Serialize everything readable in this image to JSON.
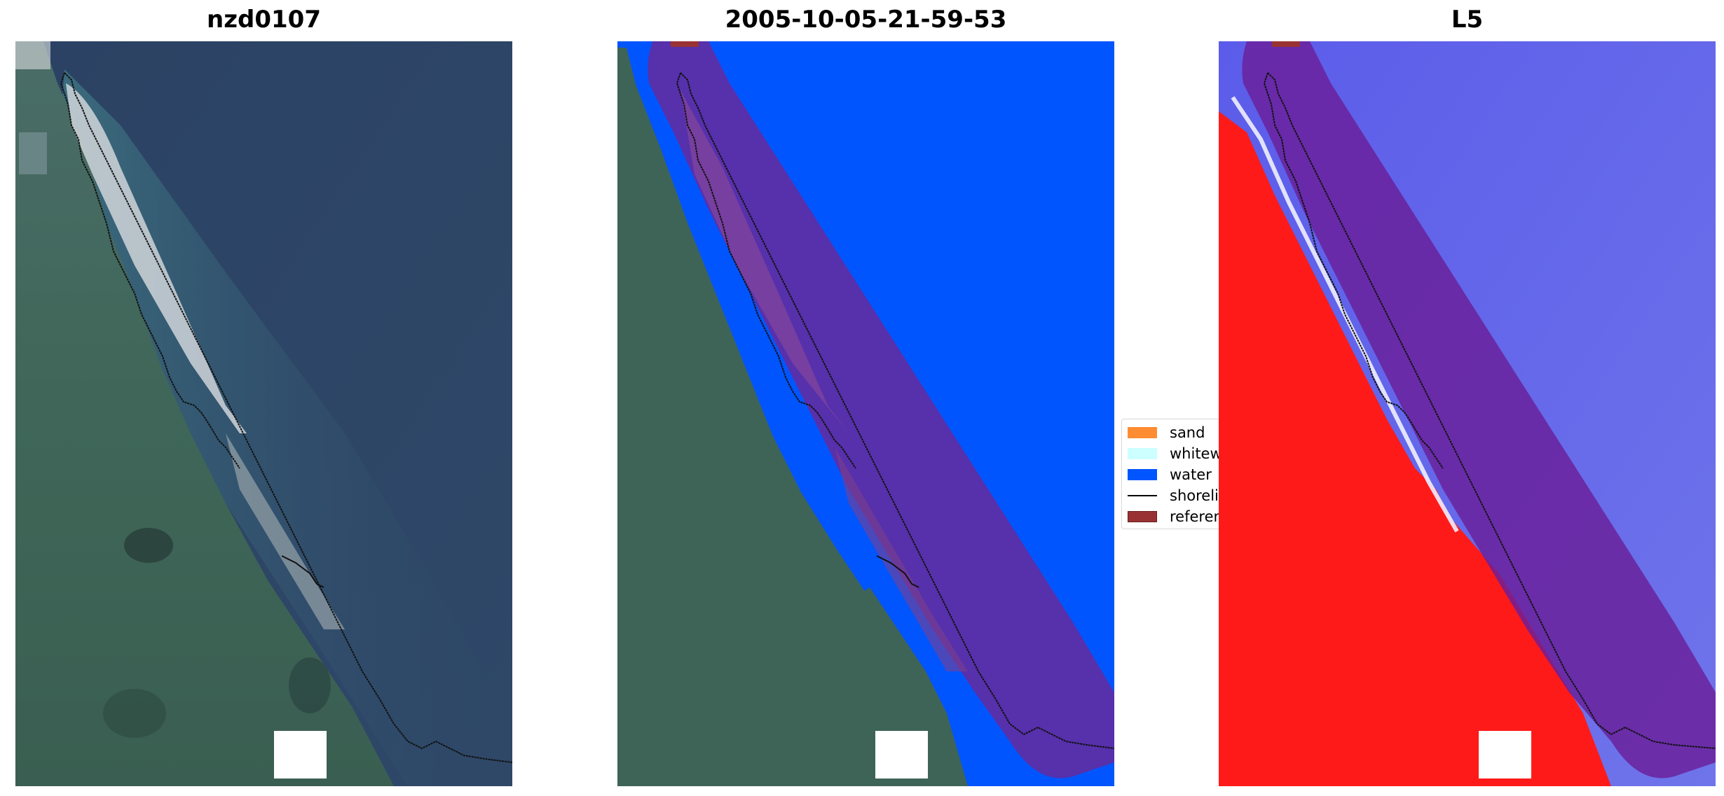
{
  "panels": [
    {
      "title": "nzd0107",
      "content": "rgb satellite image with shoreline"
    },
    {
      "title": "2005-10-05-21-59-53",
      "content": "classified image with reference buffer"
    },
    {
      "title": "L5",
      "content": "water index image with reference buffer"
    }
  ],
  "legend": {
    "items": [
      {
        "label": "sand",
        "color": "#ff8c33"
      },
      {
        "label": "whitewater",
        "color": "#ccffff"
      },
      {
        "label": "water",
        "color": "#0055ff"
      },
      {
        "label": "shoreline",
        "color": "#000000"
      },
      {
        "label": "reference",
        "color": "#993333"
      }
    ]
  },
  "colors": {
    "ocean": "#2c4466",
    "land": "#3f6658",
    "classified_water": "#0055ff",
    "buffer": "#5c2ea6",
    "index_water": "#4a4ae6",
    "index_land": "#ff1a1a"
  }
}
